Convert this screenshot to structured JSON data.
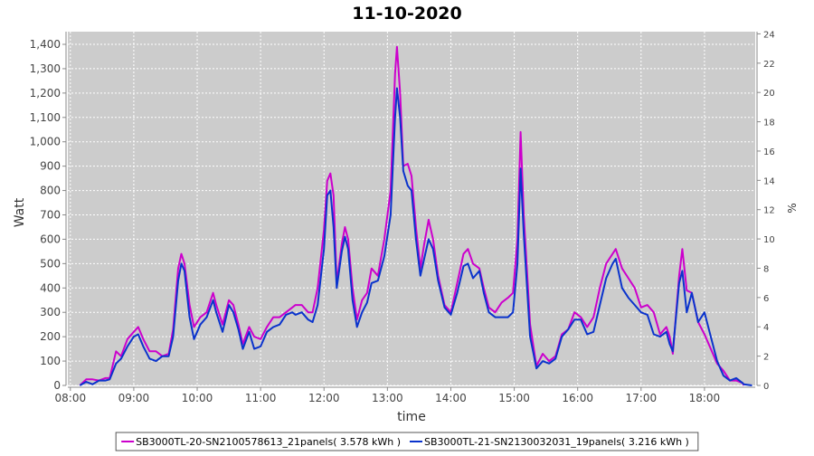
{
  "chart_data": {
    "type": "line",
    "title": "11-10-2020",
    "x_label": "time",
    "y_label": "Watt",
    "y2_label": "%",
    "x": [
      8.15,
      8.25,
      8.35,
      8.45,
      8.55,
      8.62,
      8.72,
      8.8,
      8.9,
      9.0,
      9.07,
      9.15,
      9.25,
      9.35,
      9.45,
      9.55,
      9.62,
      9.7,
      9.75,
      9.8,
      9.88,
      9.95,
      10.05,
      10.15,
      10.25,
      10.3,
      10.4,
      10.5,
      10.57,
      10.65,
      10.72,
      10.82,
      10.9,
      11.0,
      11.1,
      11.2,
      11.3,
      11.4,
      11.5,
      11.55,
      11.65,
      11.75,
      11.82,
      11.9,
      12.0,
      12.05,
      12.1,
      12.15,
      12.2,
      12.28,
      12.33,
      12.38,
      12.45,
      12.52,
      12.6,
      12.68,
      12.75,
      12.85,
      12.95,
      13.05,
      13.12,
      13.15,
      13.2,
      13.25,
      13.32,
      13.38,
      13.45,
      13.52,
      13.58,
      13.65,
      13.72,
      13.8,
      13.9,
      14.0,
      14.1,
      14.2,
      14.27,
      14.35,
      14.45,
      14.52,
      14.6,
      14.7,
      14.8,
      14.9,
      14.98,
      15.05,
      15.1,
      15.15,
      15.25,
      15.35,
      15.45,
      15.55,
      15.65,
      15.75,
      15.85,
      15.95,
      16.05,
      16.15,
      16.25,
      16.35,
      16.45,
      16.55,
      16.6,
      16.7,
      16.8,
      16.9,
      17.0,
      17.1,
      17.2,
      17.3,
      17.4,
      17.45,
      17.5,
      17.6,
      17.65,
      17.72,
      17.8,
      17.9,
      18.0,
      18.1,
      18.2,
      18.3,
      18.4,
      18.5,
      18.6,
      18.62,
      18.75
    ],
    "series": [
      {
        "name": "SB3000TL-20-SN2100578613_21panels( 3.578 kWh )",
        "color": "#cc00cc",
        "values": [
          0,
          25,
          25,
          20,
          30,
          30,
          140,
          120,
          190,
          220,
          240,
          190,
          140,
          140,
          120,
          130,
          230,
          480,
          540,
          500,
          330,
          240,
          280,
          300,
          380,
          330,
          250,
          350,
          330,
          250,
          170,
          240,
          200,
          190,
          240,
          280,
          280,
          300,
          320,
          330,
          330,
          300,
          300,
          400,
          640,
          840,
          870,
          780,
          420,
          580,
          650,
          600,
          400,
          270,
          350,
          380,
          480,
          450,
          600,
          800,
          1280,
          1390,
          1200,
          900,
          910,
          860,
          650,
          480,
          580,
          680,
          600,
          450,
          330,
          300,
          420,
          540,
          560,
          500,
          480,
          400,
          320,
          300,
          340,
          360,
          380,
          600,
          1040,
          700,
          250,
          80,
          130,
          100,
          120,
          210,
          230,
          300,
          280,
          240,
          280,
          400,
          500,
          540,
          560,
          480,
          440,
          400,
          320,
          330,
          300,
          210,
          240,
          200,
          130,
          450,
          560,
          390,
          380,
          260,
          210,
          150,
          90,
          60,
          20,
          20,
          10,
          0,
          null
        ]
      },
      {
        "name": "SB3000TL-21-SN2130032031_19panels( 3.216 kWh )",
        "color": "#0a33cc",
        "values": [
          0,
          15,
          5,
          20,
          20,
          25,
          90,
          110,
          160,
          200,
          210,
          160,
          110,
          100,
          120,
          120,
          200,
          430,
          500,
          470,
          280,
          190,
          250,
          280,
          350,
          300,
          220,
          330,
          300,
          230,
          150,
          220,
          150,
          160,
          220,
          240,
          250,
          290,
          300,
          290,
          300,
          270,
          260,
          330,
          560,
          780,
          800,
          650,
          400,
          550,
          610,
          560,
          350,
          240,
          300,
          340,
          420,
          430,
          530,
          700,
          1100,
          1220,
          1100,
          880,
          820,
          800,
          600,
          450,
          520,
          600,
          560,
          430,
          320,
          290,
          380,
          490,
          500,
          440,
          470,
          380,
          300,
          280,
          280,
          280,
          300,
          500,
          890,
          620,
          200,
          70,
          100,
          90,
          110,
          200,
          230,
          270,
          270,
          210,
          220,
          330,
          440,
          500,
          520,
          400,
          360,
          330,
          300,
          290,
          210,
          200,
          220,
          170,
          140,
          420,
          470,
          300,
          380,
          260,
          300,
          200,
          100,
          40,
          20,
          30,
          10,
          5,
          0
        ]
      }
    ],
    "xlim": [
      7.96,
      18.8
    ],
    "xticks": [
      {
        "value": 8,
        "label": "08:00"
      },
      {
        "value": 9,
        "label": "09:00"
      },
      {
        "value": 10,
        "label": "10:00"
      },
      {
        "value": 11,
        "label": "11:00"
      },
      {
        "value": 12,
        "label": "12:00"
      },
      {
        "value": 13,
        "label": "13:00"
      },
      {
        "value": 14,
        "label": "14:00"
      },
      {
        "value": 15,
        "label": "15:00"
      },
      {
        "value": 16,
        "label": "16:00"
      },
      {
        "value": 17,
        "label": "17:00"
      },
      {
        "value": 18,
        "label": "18:00"
      }
    ],
    "ylim": [
      0,
      1452
    ],
    "yticks": [
      0,
      100,
      200,
      300,
      400,
      500,
      600,
      700,
      800,
      900,
      {
        "value": 1000,
        "label": "1,000"
      },
      {
        "value": 1100,
        "label": "1,100"
      },
      {
        "value": 1200,
        "label": "1,200"
      },
      {
        "value": 1300,
        "label": "1,300"
      },
      {
        "value": 1400,
        "label": "1,400"
      }
    ],
    "y2lim": [
      0,
      24.15
    ],
    "y2ticks": [
      0,
      2,
      4,
      6,
      8,
      10,
      12,
      14,
      16,
      18,
      20,
      22,
      24
    ],
    "grid": true
  }
}
